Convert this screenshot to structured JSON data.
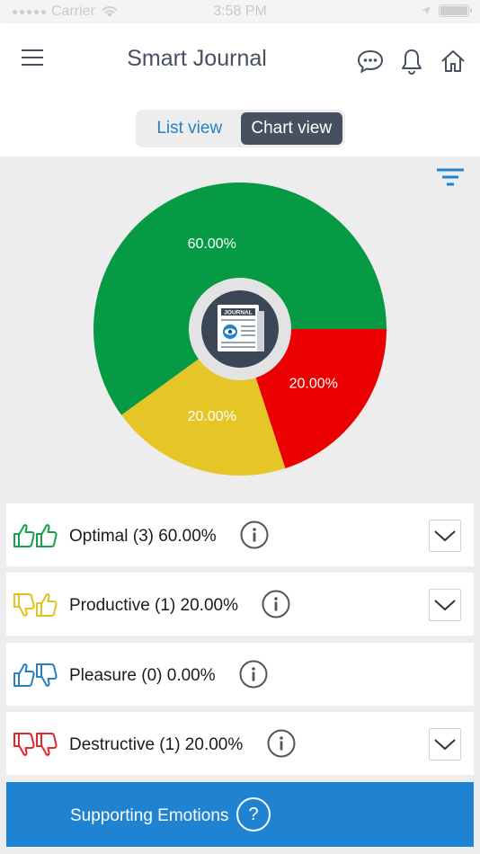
{
  "status_bar": {
    "carrier": "Carrier",
    "time": "3:58 PM"
  },
  "header": {
    "title": "Smart Journal",
    "icons": [
      "menu-icon",
      "chat-bubble-icon",
      "bell-icon",
      "home-icon"
    ]
  },
  "view_toggle": {
    "list_label": "List view",
    "chart_label": "Chart view",
    "selected": "Chart view"
  },
  "chart_data": {
    "type": "pie",
    "slices": [
      {
        "label": "60.00%",
        "value": 60,
        "color": "#069a44"
      },
      {
        "label": "20.00%",
        "value": 20,
        "color": "#ea0000"
      },
      {
        "label": "20.00%",
        "value": 20,
        "color": "#e6c627"
      }
    ],
    "center_icon": "journal-icon",
    "center_text": "JOURNAL"
  },
  "categories": [
    {
      "label": "Optimal (3) 60.00%",
      "thumb_color": "#14a14a",
      "thumbs": [
        "up",
        "up"
      ],
      "expandable": true
    },
    {
      "label": "Productive (1) 20.00%",
      "thumb_color": "#e1c21f",
      "thumbs": [
        "down",
        "up"
      ],
      "expandable": true
    },
    {
      "label": "Pleasure (0) 0.00%",
      "thumb_color": "#2680c6",
      "thumbs": [
        "up",
        "down"
      ],
      "expandable": false
    },
    {
      "label": "Destructive (1) 20.00%",
      "thumb_color": "#e0272c",
      "thumbs": [
        "down",
        "down"
      ],
      "expandable": true
    }
  ],
  "supporting": {
    "label": "Supporting Emotions",
    "icon_label": "?"
  }
}
